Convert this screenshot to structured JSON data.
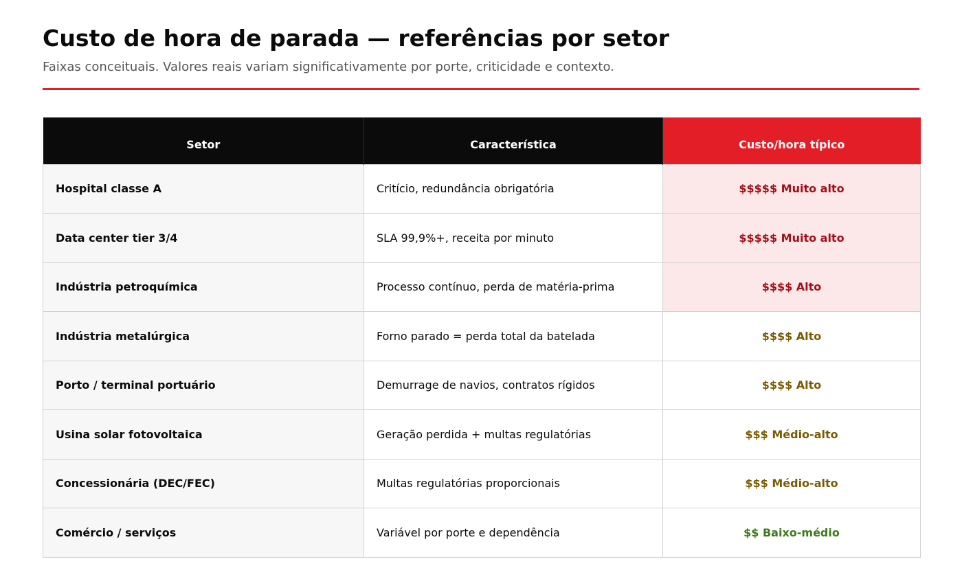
{
  "header": {
    "title": "Custo de hora de parada — referências por setor",
    "subtitle": "Faixas conceituais. Valores reais variam significativamente por porte, criticidade e contexto."
  },
  "table": {
    "columns": [
      "Setor",
      "Característica",
      "Custo/hora típico"
    ],
    "rows": [
      {
        "sector": "Hospital classe A",
        "feature": "Critício, redundância obrigatória",
        "cost": "$$$$$ Muito alto"
      },
      {
        "sector": "Data center tier 3/4",
        "feature": "SLA 99,9%+, receita por minuto",
        "cost": "$$$$$ Muito alto"
      },
      {
        "sector": "Indústria petroquímica",
        "feature": "Processo contínuo, perda de matéria-prima",
        "cost": "$$$$ Alto"
      },
      {
        "sector": "Indústria metalúrgica",
        "feature": "Forno parado = perda total da batelada",
        "cost": "$$$$ Alto"
      },
      {
        "sector": "Porto / terminal portuário",
        "feature": "Demurrage de navios, contratos rígidos",
        "cost": "$$$$ Alto"
      },
      {
        "sector": "Usina solar fotovoltaica",
        "feature": "Geração perdida + multas regulatórias",
        "cost": "$$$ Médio-alto"
      },
      {
        "sector": "Concessionária (DEC/FEC)",
        "feature": "Multas regulatórias proporcionais",
        "cost": "$$$ Médio-alto"
      },
      {
        "sector": "Comércio / serviços",
        "feature": "Variável por porte e dependência",
        "cost": "$$ Baixo-médio"
      }
    ]
  },
  "colors": {
    "accent": "#e31e26",
    "header_dark": "#0b0b0c",
    "highlight_bg": "#fde8e9",
    "very_high_text": "#a10f18",
    "high_text": "#7a5a00",
    "low_text": "#3f7a1c"
  }
}
